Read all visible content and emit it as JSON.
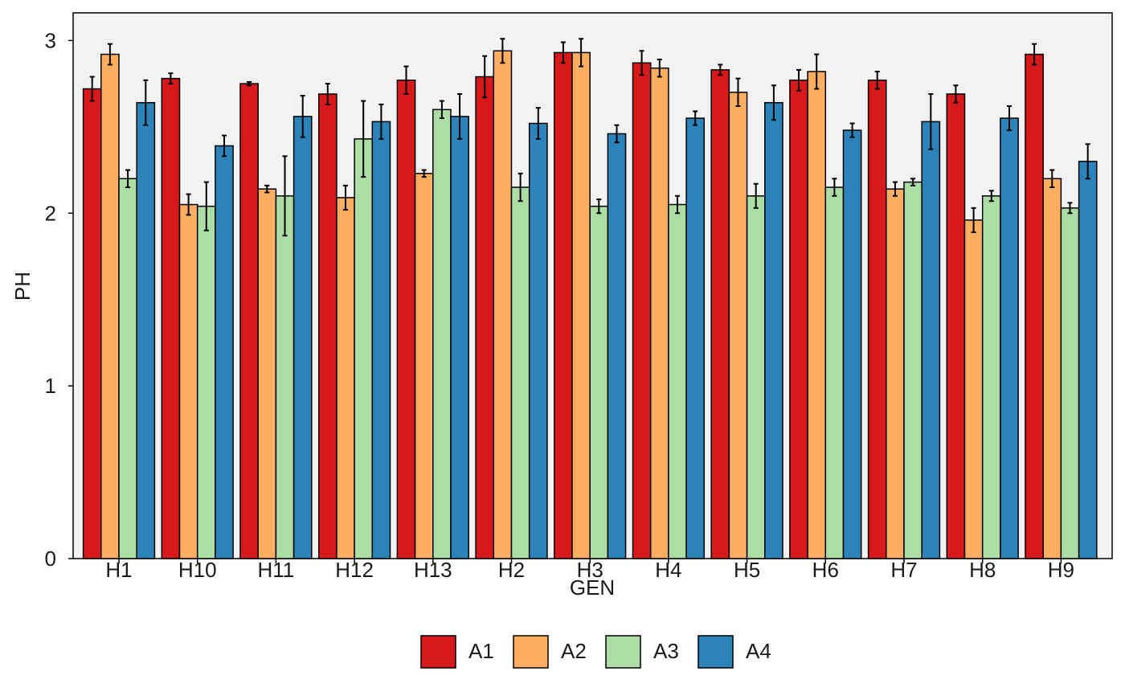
{
  "chart_data": {
    "type": "bar",
    "xlabel": "GEN",
    "ylabel": "PH",
    "ylim": [
      0,
      3.16
    ],
    "yticks": [
      0,
      1,
      2,
      3
    ],
    "grid": false,
    "legend_position": "bottom",
    "categories": [
      "H1",
      "H10",
      "H11",
      "H12",
      "H13",
      "H2",
      "H3",
      "H4",
      "H5",
      "H6",
      "H7",
      "H8",
      "H9"
    ],
    "series": [
      {
        "name": "A1",
        "color": "#d7191c",
        "values": [
          2.72,
          2.78,
          2.75,
          2.69,
          2.77,
          2.79,
          2.93,
          2.87,
          2.83,
          2.77,
          2.77,
          2.69,
          2.92
        ],
        "errors": [
          0.07,
          0.03,
          0.01,
          0.06,
          0.08,
          0.12,
          0.06,
          0.07,
          0.03,
          0.06,
          0.05,
          0.05,
          0.06
        ]
      },
      {
        "name": "A2",
        "color": "#fdae61",
        "values": [
          2.92,
          2.05,
          2.14,
          2.09,
          2.23,
          2.94,
          2.93,
          2.84,
          2.7,
          2.82,
          2.14,
          1.96,
          2.2
        ],
        "errors": [
          0.06,
          0.06,
          0.02,
          0.07,
          0.02,
          0.07,
          0.08,
          0.05,
          0.08,
          0.1,
          0.04,
          0.07,
          0.05
        ]
      },
      {
        "name": "A3",
        "color": "#abdda4",
        "values": [
          2.2,
          2.04,
          2.1,
          2.43,
          2.6,
          2.15,
          2.04,
          2.05,
          2.1,
          2.15,
          2.18,
          2.1,
          2.03
        ],
        "errors": [
          0.05,
          0.14,
          0.23,
          0.22,
          0.05,
          0.08,
          0.04,
          0.05,
          0.07,
          0.05,
          0.02,
          0.03,
          0.03
        ]
      },
      {
        "name": "A4",
        "color": "#2b83ba",
        "values": [
          2.64,
          2.39,
          2.56,
          2.53,
          2.56,
          2.52,
          2.46,
          2.55,
          2.64,
          2.48,
          2.53,
          2.55,
          2.3
        ],
        "errors": [
          0.13,
          0.06,
          0.12,
          0.1,
          0.13,
          0.09,
          0.05,
          0.04,
          0.1,
          0.04,
          0.16,
          0.07,
          0.1
        ]
      }
    ]
  }
}
